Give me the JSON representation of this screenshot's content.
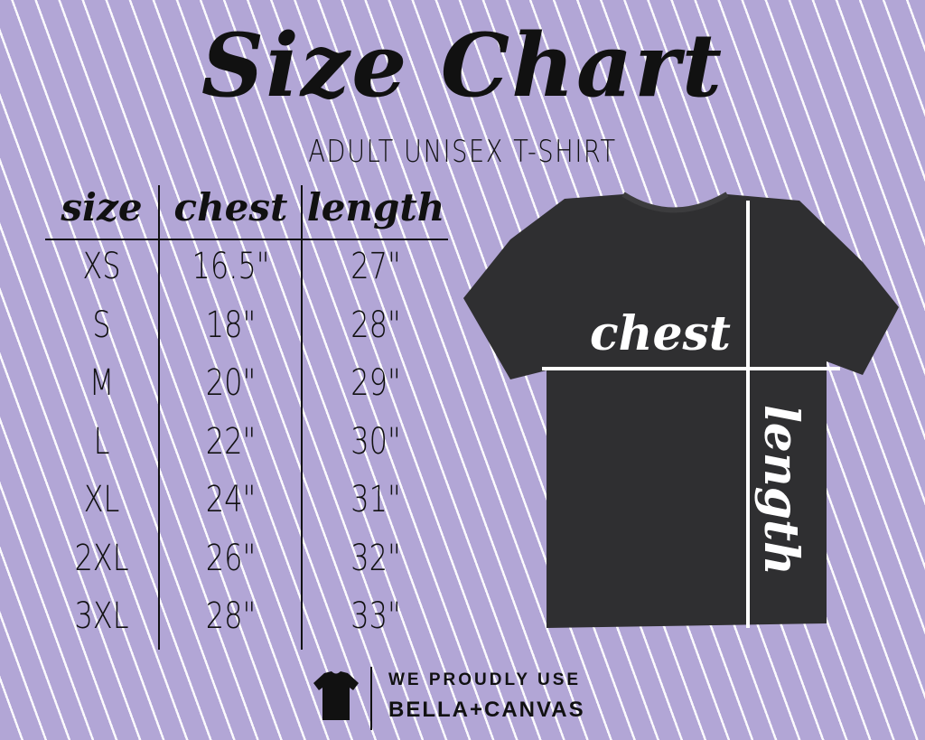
{
  "title": "Size Chart",
  "subtitle": "ADULT UNISEX T-SHIRT",
  "table": {
    "headers": [
      "size",
      "chest",
      "length"
    ],
    "rows": [
      [
        "XS",
        "16.5\"",
        "27\""
      ],
      [
        "S",
        "18\"",
        "28\""
      ],
      [
        "M",
        "20\"",
        "29\""
      ],
      [
        "L",
        "22\"",
        "30\""
      ],
      [
        "XL",
        "24\"",
        "31\""
      ],
      [
        "2XL",
        "26\"",
        "32\""
      ],
      [
        "3XL",
        "28\"",
        "33\""
      ]
    ]
  },
  "shirt": {
    "chest_label": "chest",
    "length_label": "length",
    "color": "#2f2f31"
  },
  "footer": {
    "line1": "WE PROUDLY USE",
    "line2": "BELLA+CANVAS",
    "icon": "tshirt-icon"
  },
  "colors": {
    "background": "#b2a6d6",
    "stripes": "#ffffff",
    "text": "#111111"
  }
}
